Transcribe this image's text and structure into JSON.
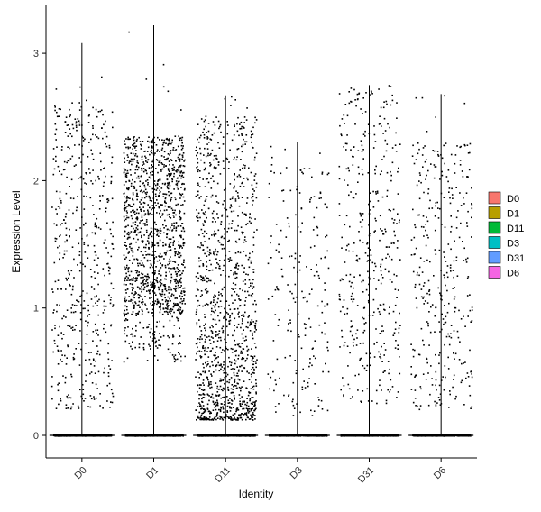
{
  "chart_data": {
    "type": "violin-jitter",
    "xlabel": "Identity",
    "ylabel": "Expression Level",
    "categories": [
      "D0",
      "D1",
      "D11",
      "D3",
      "D31",
      "D6"
    ],
    "ylim": [
      -0.18,
      3.3
    ],
    "yticks": [
      0,
      1,
      2,
      3
    ],
    "legend_position": "right",
    "legend_title": "",
    "grid": false,
    "series": [
      {
        "category": "D0",
        "fill": "#F8766D",
        "max": 3.08,
        "n_expressing": 500,
        "n_zero": 700,
        "expr_range": [
          0.2,
          2.6
        ]
      },
      {
        "category": "D1",
        "fill": "#B79F00",
        "max": 3.22,
        "n_expressing": 1300,
        "n_zero": 900,
        "expr_range": [
          0.2,
          2.35
        ]
      },
      {
        "category": "D11",
        "fill": "#00BA38",
        "max": 2.67,
        "n_expressing": 1200,
        "n_zero": 900,
        "expr_range": [
          0.12,
          2.5
        ]
      },
      {
        "category": "D3",
        "fill": "#00BFC4",
        "max": 2.3,
        "n_expressing": 200,
        "n_zero": 600,
        "expr_range": [
          0.15,
          2.1
        ]
      },
      {
        "category": "D31",
        "fill": "#619CFF",
        "max": 2.75,
        "n_expressing": 400,
        "n_zero": 700,
        "expr_range": [
          0.25,
          2.7
        ]
      },
      {
        "category": "D6",
        "fill": "#F564E3",
        "max": 2.68,
        "n_expressing": 350,
        "n_zero": 700,
        "expr_range": [
          0.2,
          2.3
        ]
      }
    ]
  }
}
